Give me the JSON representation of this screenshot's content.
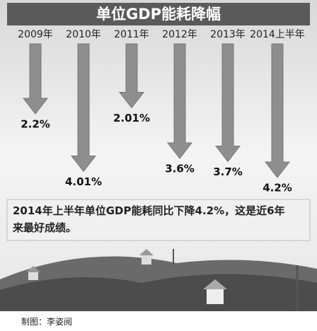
{
  "chart_data": {
    "type": "arrow-bar",
    "title": "单位GDP能耗降幅",
    "categories": [
      "2009年",
      "2010年",
      "2011年",
      "2012年",
      "2013年",
      "2014上半年"
    ],
    "values": [
      2.2,
      4.01,
      2.01,
      3.6,
      3.7,
      4.2
    ],
    "value_labels": [
      "2.2%",
      "4.01%",
      "2.01%",
      "3.6%",
      "3.7%",
      "4.2%"
    ],
    "color": "#8e8e8e",
    "note": "2014年上半年单位GDP能耗同比下降4.2%，这是近6年来最好成绩。",
    "credit": "制图：李姿阅"
  }
}
